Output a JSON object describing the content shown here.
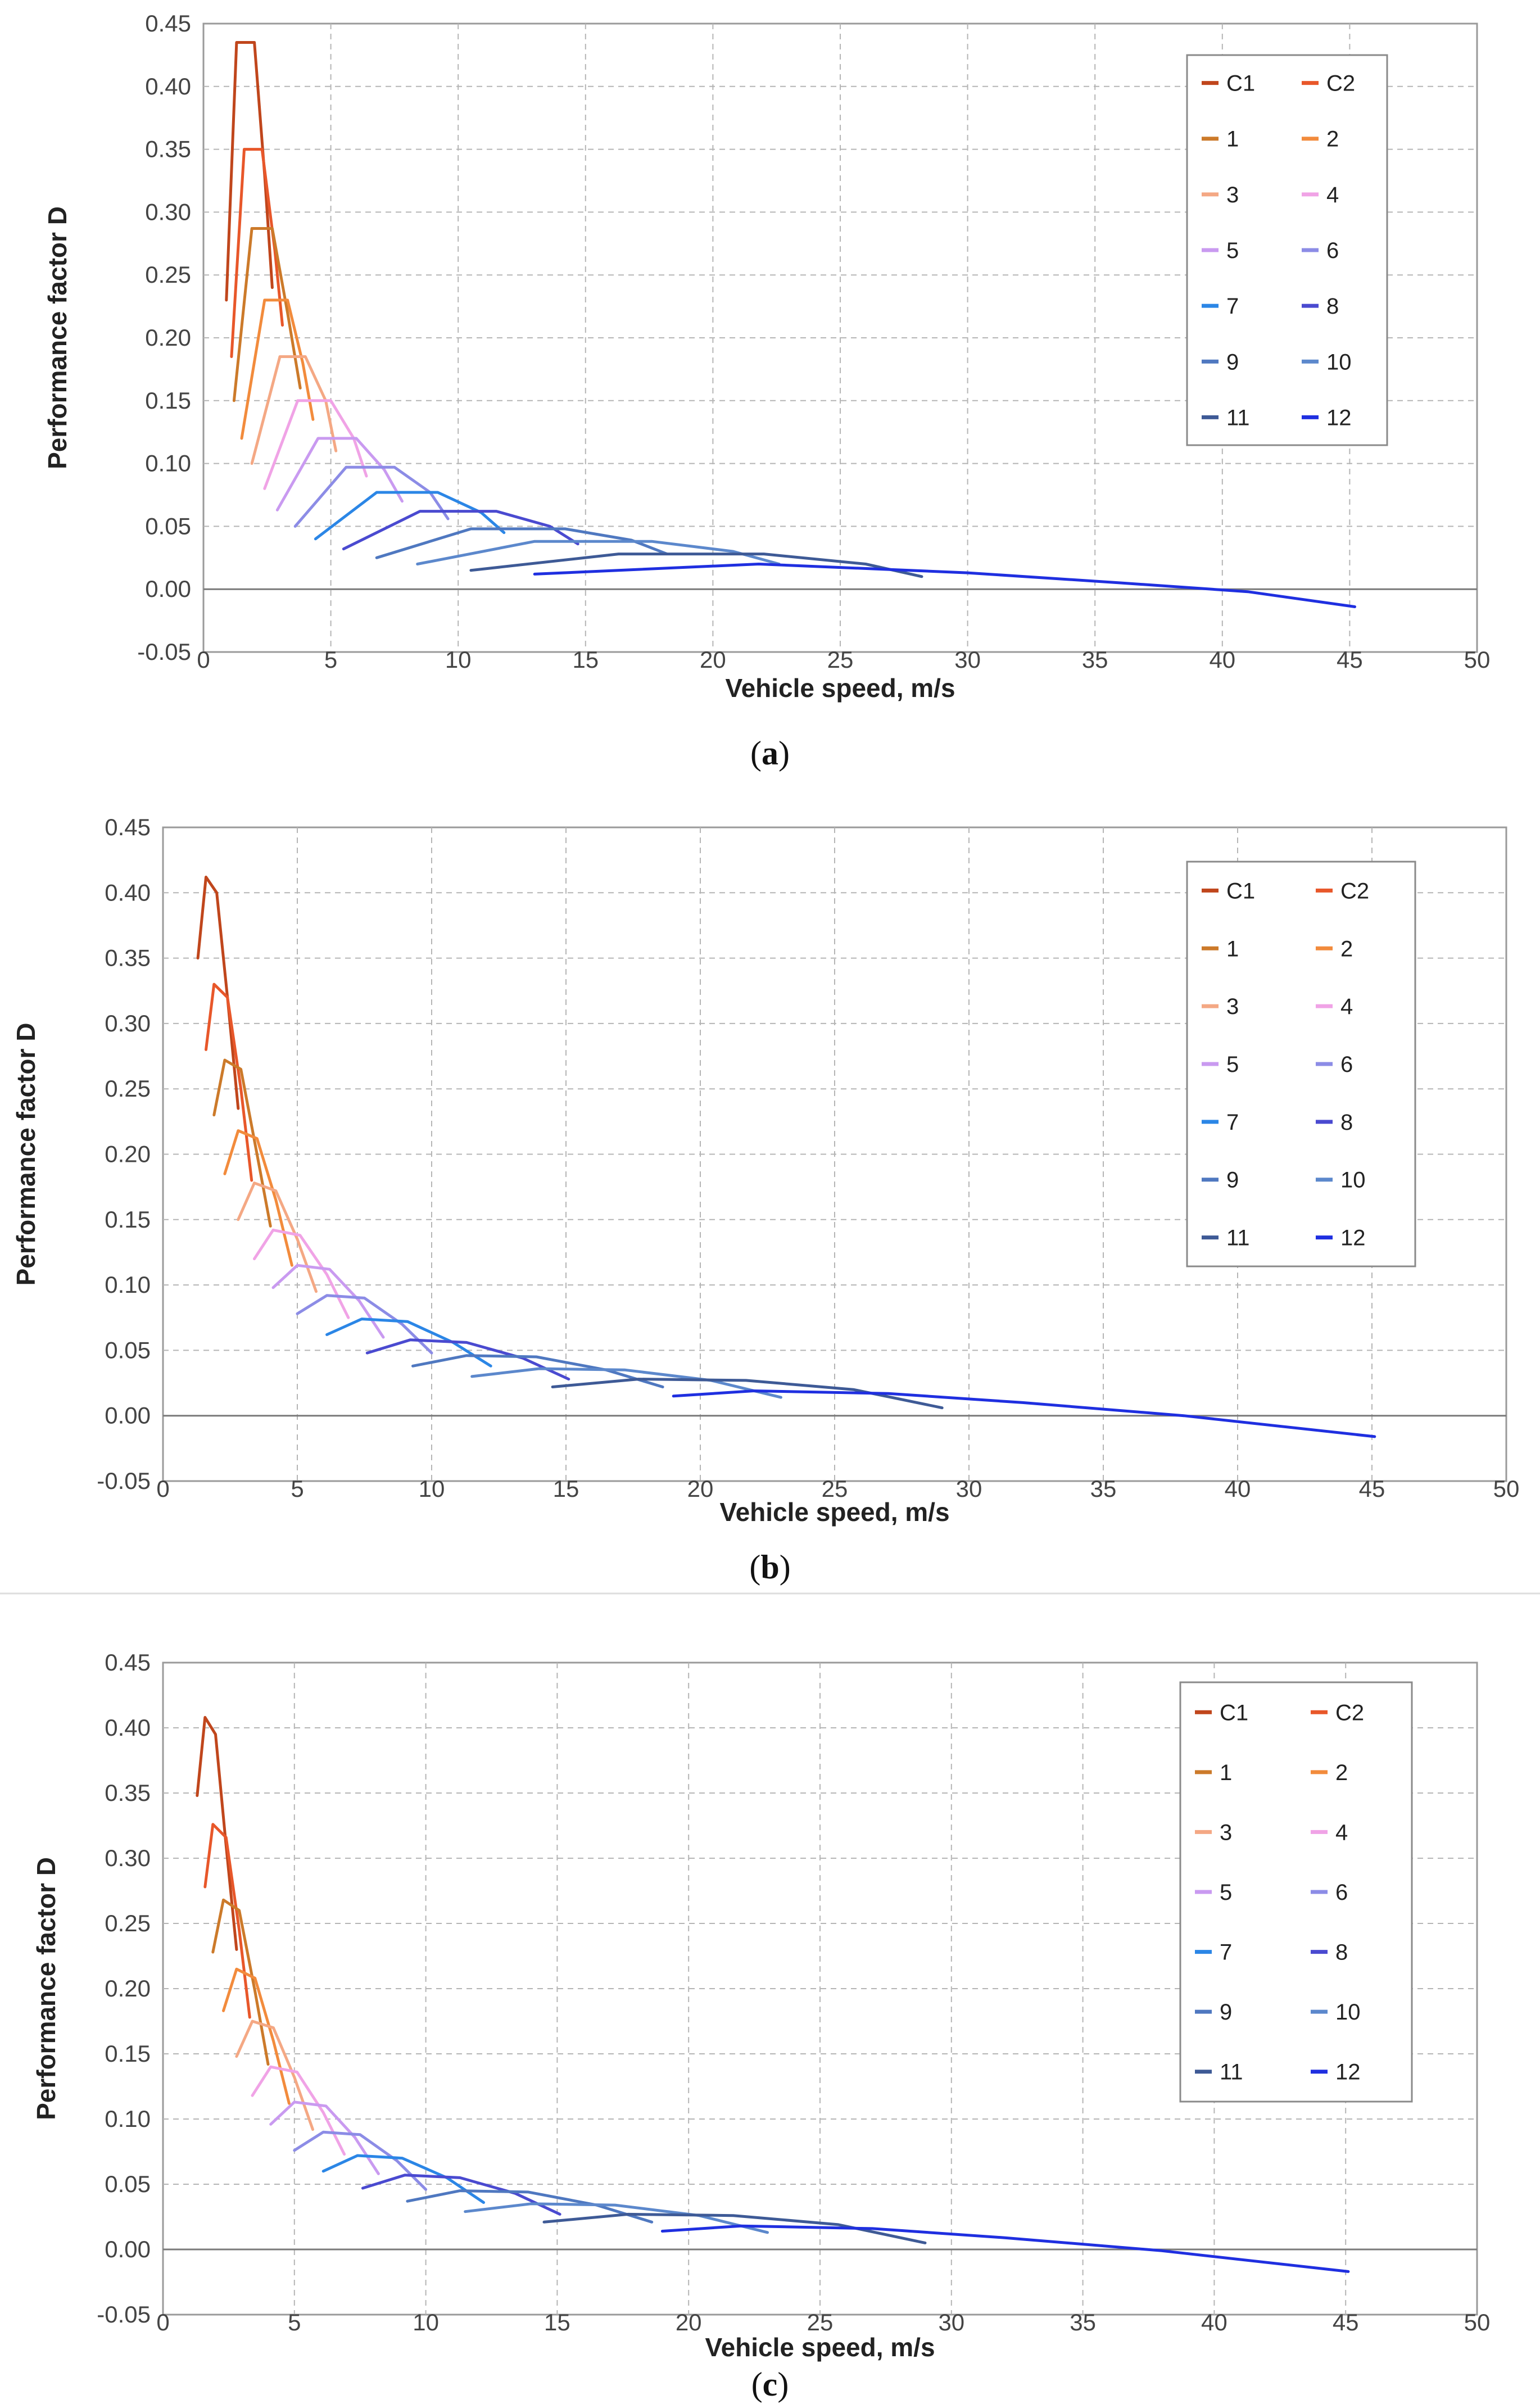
{
  "legend_colors": {
    "C1": "#c0461c",
    "C2": "#e8572a",
    "1": "#cc7a2a",
    "2": "#f28b3c",
    "3": "#f4a884",
    "4": "#f0a3e6",
    "5": "#c99af0",
    "6": "#8c8ce6",
    "7": "#2b86e6",
    "8": "#4a4ad0",
    "9": "#4f78c0",
    "10": "#5c88cc",
    "11": "#3e5a96",
    "12": "#1f2fe0"
  },
  "chart_data": [
    {
      "type": "line",
      "panel": "a",
      "caption_open": "(",
      "caption_letter": "a",
      "caption_close": ")",
      "xlabel": "Vehicle speed, m/s",
      "ylabel": "Performance factor D",
      "xlim": [
        0,
        50
      ],
      "ylim": [
        -0.05,
        0.45
      ],
      "xticks": [
        "0",
        "5",
        "10",
        "15",
        "20",
        "25",
        "30",
        "35",
        "40",
        "45",
        "50"
      ],
      "yticks": [
        "-0.05",
        "0.00",
        "0.05",
        "0.10",
        "0.15",
        "0.20",
        "0.25",
        "0.30",
        "0.35",
        "0.40",
        "0.45"
      ],
      "grid": true,
      "legend_position": "top-right",
      "legend": [
        "C1",
        "C2",
        "1",
        "2",
        "3",
        "4",
        "5",
        "6",
        "7",
        "8",
        "9",
        "10",
        "11",
        "12"
      ],
      "series": [
        {
          "name": "C1",
          "x": [
            0.9,
            1.3,
            2.0,
            2.4,
            2.7
          ],
          "y": [
            0.23,
            0.435,
            0.435,
            0.33,
            0.24
          ]
        },
        {
          "name": "C2",
          "x": [
            1.1,
            1.6,
            2.3,
            2.8,
            3.1
          ],
          "y": [
            0.185,
            0.35,
            0.35,
            0.27,
            0.21
          ]
        },
        {
          "name": "1",
          "x": [
            1.2,
            1.9,
            2.7,
            3.3,
            3.8
          ],
          "y": [
            0.15,
            0.287,
            0.287,
            0.22,
            0.16
          ]
        },
        {
          "name": "2",
          "x": [
            1.5,
            2.4,
            3.3,
            3.9,
            4.3
          ],
          "y": [
            0.12,
            0.23,
            0.23,
            0.18,
            0.135
          ]
        },
        {
          "name": "3",
          "x": [
            1.9,
            3.0,
            4.0,
            4.8,
            5.2
          ],
          "y": [
            0.1,
            0.185,
            0.185,
            0.15,
            0.11
          ]
        },
        {
          "name": "4",
          "x": [
            2.4,
            3.7,
            5.0,
            5.9,
            6.4
          ],
          "y": [
            0.08,
            0.15,
            0.15,
            0.12,
            0.09
          ]
        },
        {
          "name": "5",
          "x": [
            2.9,
            4.5,
            6.0,
            7.1,
            7.8
          ],
          "y": [
            0.063,
            0.12,
            0.12,
            0.095,
            0.07
          ]
        },
        {
          "name": "6",
          "x": [
            3.6,
            5.6,
            7.5,
            8.9,
            9.6
          ],
          "y": [
            0.05,
            0.097,
            0.097,
            0.077,
            0.056
          ]
        },
        {
          "name": "7",
          "x": [
            4.4,
            6.8,
            9.2,
            10.9,
            11.8
          ],
          "y": [
            0.04,
            0.077,
            0.077,
            0.061,
            0.045
          ]
        },
        {
          "name": "8",
          "x": [
            5.5,
            8.5,
            11.5,
            13.6,
            14.7
          ],
          "y": [
            0.032,
            0.062,
            0.062,
            0.05,
            0.036
          ]
        },
        {
          "name": "9",
          "x": [
            6.8,
            10.5,
            14.2,
            16.8,
            18.2
          ],
          "y": [
            0.025,
            0.048,
            0.048,
            0.039,
            0.028
          ]
        },
        {
          "name": "10",
          "x": [
            8.4,
            13.0,
            17.6,
            20.8,
            22.6
          ],
          "y": [
            0.02,
            0.038,
            0.038,
            0.03,
            0.02
          ]
        },
        {
          "name": "11",
          "x": [
            10.5,
            16.3,
            22.0,
            26.0,
            28.2
          ],
          "y": [
            0.015,
            0.028,
            0.028,
            0.02,
            0.01
          ]
        },
        {
          "name": "12",
          "x": [
            13.0,
            21.8,
            30.0,
            36.0,
            41.0,
            45.2
          ],
          "y": [
            0.012,
            0.02,
            0.013,
            0.005,
            -0.002,
            -0.014
          ]
        }
      ]
    },
    {
      "type": "line",
      "panel": "b",
      "caption_open": "(",
      "caption_letter": "b",
      "caption_close": ")",
      "xlabel": "Vehicle speed, m/s",
      "ylabel": "Performance factor D",
      "xlim": [
        0,
        50
      ],
      "ylim": [
        -0.05,
        0.45
      ],
      "xticks": [
        "0",
        "5",
        "10",
        "15",
        "20",
        "25",
        "30",
        "35",
        "40",
        "45",
        "50"
      ],
      "yticks": [
        "-0.05",
        "0.00",
        "0.05",
        "0.10",
        "0.15",
        "0.20",
        "0.25",
        "0.30",
        "0.35",
        "0.40",
        "0.45"
      ],
      "grid": true,
      "legend_position": "top-right",
      "legend": [
        "C1",
        "C2",
        "1",
        "2",
        "3",
        "4",
        "5",
        "6",
        "7",
        "8",
        "9",
        "10",
        "11",
        "12"
      ],
      "series": [
        {
          "name": "C1",
          "x": [
            1.3,
            1.6,
            2.0,
            2.4,
            2.8
          ],
          "y": [
            0.35,
            0.412,
            0.4,
            0.32,
            0.235
          ]
        },
        {
          "name": "C2",
          "x": [
            1.6,
            1.9,
            2.4,
            2.9,
            3.3
          ],
          "y": [
            0.28,
            0.33,
            0.32,
            0.25,
            0.18
          ]
        },
        {
          "name": "1",
          "x": [
            1.9,
            2.3,
            2.9,
            3.5,
            4.0
          ],
          "y": [
            0.23,
            0.272,
            0.265,
            0.2,
            0.145
          ]
        },
        {
          "name": "2",
          "x": [
            2.3,
            2.8,
            3.5,
            4.2,
            4.8
          ],
          "y": [
            0.185,
            0.218,
            0.212,
            0.165,
            0.115
          ]
        },
        {
          "name": "3",
          "x": [
            2.8,
            3.4,
            4.2,
            5.0,
            5.7
          ],
          "y": [
            0.15,
            0.178,
            0.172,
            0.135,
            0.095
          ]
        },
        {
          "name": "4",
          "x": [
            3.4,
            4.1,
            5.1,
            6.1,
            6.9
          ],
          "y": [
            0.12,
            0.142,
            0.138,
            0.108,
            0.075
          ]
        },
        {
          "name": "5",
          "x": [
            4.1,
            5.0,
            6.2,
            7.3,
            8.2
          ],
          "y": [
            0.098,
            0.115,
            0.112,
            0.088,
            0.06
          ]
        },
        {
          "name": "6",
          "x": [
            5.0,
            6.1,
            7.5,
            8.9,
            10.0
          ],
          "y": [
            0.078,
            0.092,
            0.09,
            0.07,
            0.048
          ]
        },
        {
          "name": "7",
          "x": [
            6.1,
            7.4,
            9.1,
            10.8,
            12.2
          ],
          "y": [
            0.062,
            0.074,
            0.072,
            0.056,
            0.038
          ]
        },
        {
          "name": "8",
          "x": [
            7.6,
            9.2,
            11.3,
            13.4,
            15.1
          ],
          "y": [
            0.048,
            0.058,
            0.056,
            0.044,
            0.028
          ]
        },
        {
          "name": "9",
          "x": [
            9.3,
            11.3,
            13.9,
            16.5,
            18.6
          ],
          "y": [
            0.038,
            0.046,
            0.045,
            0.035,
            0.022
          ]
        },
        {
          "name": "10",
          "x": [
            11.5,
            14.0,
            17.2,
            20.4,
            23.0
          ],
          "y": [
            0.03,
            0.036,
            0.035,
            0.027,
            0.014
          ]
        },
        {
          "name": "11",
          "x": [
            14.5,
            17.7,
            21.7,
            25.7,
            29.0
          ],
          "y": [
            0.022,
            0.028,
            0.027,
            0.02,
            0.006
          ]
        },
        {
          "name": "12",
          "x": [
            19.0,
            22.0,
            27.0,
            32.0,
            38.0,
            45.1
          ],
          "y": [
            0.015,
            0.019,
            0.017,
            0.01,
            0.0,
            -0.016
          ]
        }
      ]
    },
    {
      "type": "line",
      "panel": "c",
      "caption_open": "(",
      "caption_letter": "c",
      "caption_close": ")",
      "xlabel": "Vehicle speed, m/s",
      "ylabel": "Performance factor D",
      "xlim": [
        0,
        50
      ],
      "ylim": [
        -0.05,
        0.45
      ],
      "xticks": [
        "0",
        "5",
        "10",
        "15",
        "20",
        "25",
        "30",
        "35",
        "40",
        "45",
        "50"
      ],
      "yticks": [
        "-0.05",
        "0.00",
        "0.05",
        "0.10",
        "0.15",
        "0.20",
        "0.25",
        "0.30",
        "0.35",
        "0.40",
        "0.45"
      ],
      "grid": true,
      "legend_position": "top-right",
      "legend": [
        "C1",
        "C2",
        "1",
        "2",
        "3",
        "4",
        "5",
        "6",
        "7",
        "8",
        "9",
        "10",
        "11",
        "12"
      ],
      "series": [
        {
          "name": "C1",
          "x": [
            1.3,
            1.6,
            2.0,
            2.4,
            2.8
          ],
          "y": [
            0.348,
            0.408,
            0.395,
            0.31,
            0.23
          ]
        },
        {
          "name": "C2",
          "x": [
            1.6,
            1.9,
            2.4,
            2.9,
            3.3
          ],
          "y": [
            0.278,
            0.326,
            0.316,
            0.245,
            0.178
          ]
        },
        {
          "name": "1",
          "x": [
            1.9,
            2.3,
            2.9,
            3.5,
            4.0
          ],
          "y": [
            0.228,
            0.268,
            0.26,
            0.198,
            0.142
          ]
        },
        {
          "name": "2",
          "x": [
            2.3,
            2.8,
            3.5,
            4.2,
            4.8
          ],
          "y": [
            0.183,
            0.215,
            0.208,
            0.16,
            0.112
          ]
        },
        {
          "name": "3",
          "x": [
            2.8,
            3.4,
            4.2,
            5.0,
            5.7
          ],
          "y": [
            0.148,
            0.175,
            0.17,
            0.132,
            0.092
          ]
        },
        {
          "name": "4",
          "x": [
            3.4,
            4.1,
            5.1,
            6.1,
            6.9
          ],
          "y": [
            0.118,
            0.14,
            0.136,
            0.105,
            0.073
          ]
        },
        {
          "name": "5",
          "x": [
            4.1,
            5.0,
            6.2,
            7.3,
            8.2
          ],
          "y": [
            0.096,
            0.113,
            0.11,
            0.086,
            0.058
          ]
        },
        {
          "name": "6",
          "x": [
            5.0,
            6.1,
            7.5,
            8.9,
            10.0
          ],
          "y": [
            0.076,
            0.09,
            0.088,
            0.068,
            0.046
          ]
        },
        {
          "name": "7",
          "x": [
            6.1,
            7.4,
            9.1,
            10.8,
            12.2
          ],
          "y": [
            0.06,
            0.072,
            0.07,
            0.055,
            0.036
          ]
        },
        {
          "name": "8",
          "x": [
            7.6,
            9.2,
            11.3,
            13.4,
            15.1
          ],
          "y": [
            0.047,
            0.057,
            0.055,
            0.043,
            0.027
          ]
        },
        {
          "name": "9",
          "x": [
            9.3,
            11.3,
            13.9,
            16.5,
            18.6
          ],
          "y": [
            0.037,
            0.045,
            0.044,
            0.034,
            0.021
          ]
        },
        {
          "name": "10",
          "x": [
            11.5,
            14.0,
            17.2,
            20.4,
            23.0
          ],
          "y": [
            0.029,
            0.035,
            0.034,
            0.026,
            0.013
          ]
        },
        {
          "name": "11",
          "x": [
            14.5,
            17.7,
            21.7,
            25.7,
            29.0
          ],
          "y": [
            0.021,
            0.027,
            0.026,
            0.019,
            0.005
          ]
        },
        {
          "name": "12",
          "x": [
            19.0,
            22.0,
            27.0,
            32.0,
            38.0,
            45.1
          ],
          "y": [
            0.014,
            0.018,
            0.016,
            0.009,
            -0.001,
            -0.017
          ]
        }
      ]
    }
  ]
}
